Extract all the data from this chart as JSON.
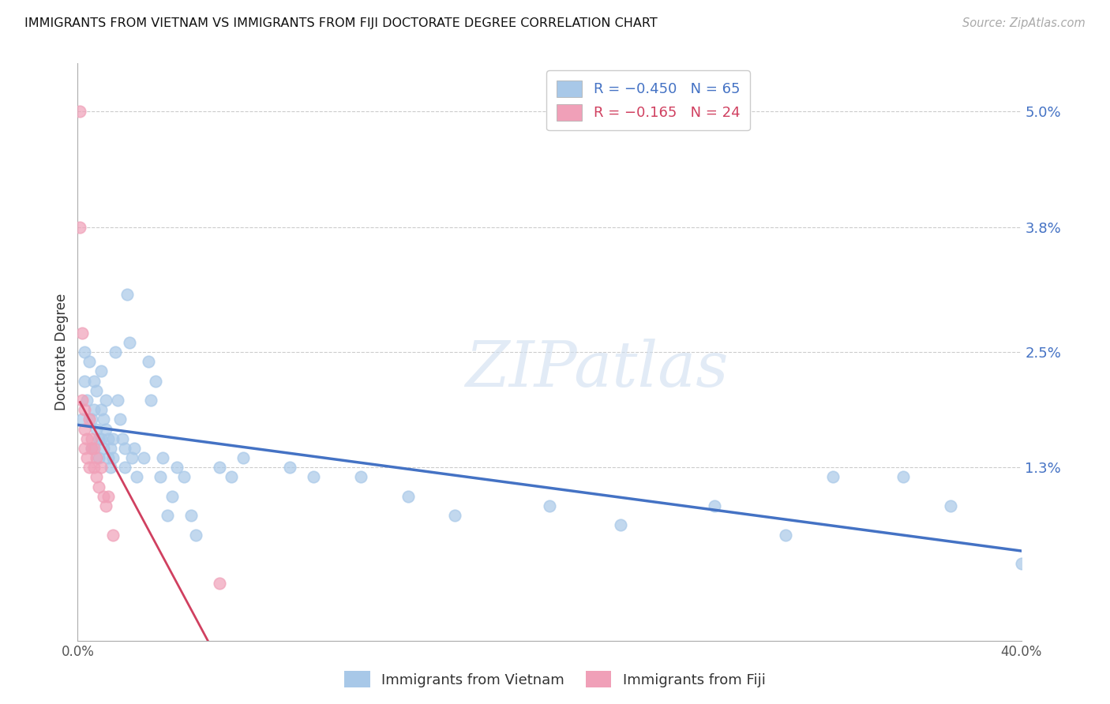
{
  "title": "IMMIGRANTS FROM VIETNAM VS IMMIGRANTS FROM FIJI DOCTORATE DEGREE CORRELATION CHART",
  "source": "Source: ZipAtlas.com",
  "ylabel": "Doctorate Degree",
  "ytick_labels": [
    "5.0%",
    "3.8%",
    "2.5%",
    "1.3%"
  ],
  "ytick_values": [
    0.05,
    0.038,
    0.025,
    0.013
  ],
  "xlim": [
    0.0,
    0.4
  ],
  "ylim": [
    -0.005,
    0.055
  ],
  "legend_r_vietnam": "R = −0.450",
  "legend_n_vietnam": "N = 65",
  "legend_r_fiji": "R = −0.165",
  "legend_n_fiji": "N = 24",
  "vietnam_color": "#a8c8e8",
  "fiji_color": "#f0a0b8",
  "trend_vietnam_color": "#4472c4",
  "trend_fiji_color": "#d04060",
  "vietnam_x": [
    0.002,
    0.003,
    0.003,
    0.004,
    0.005,
    0.006,
    0.006,
    0.007,
    0.007,
    0.008,
    0.008,
    0.009,
    0.009,
    0.01,
    0.01,
    0.01,
    0.011,
    0.011,
    0.012,
    0.012,
    0.013,
    0.013,
    0.014,
    0.014,
    0.015,
    0.015,
    0.016,
    0.017,
    0.018,
    0.019,
    0.02,
    0.02,
    0.021,
    0.022,
    0.023,
    0.024,
    0.025,
    0.028,
    0.03,
    0.031,
    0.033,
    0.035,
    0.036,
    0.038,
    0.04,
    0.042,
    0.045,
    0.048,
    0.05,
    0.06,
    0.065,
    0.07,
    0.09,
    0.1,
    0.12,
    0.14,
    0.16,
    0.2,
    0.23,
    0.27,
    0.3,
    0.32,
    0.35,
    0.37,
    0.4
  ],
  "vietnam_y": [
    0.018,
    0.022,
    0.025,
    0.02,
    0.024,
    0.015,
    0.018,
    0.022,
    0.019,
    0.017,
    0.021,
    0.016,
    0.014,
    0.023,
    0.019,
    0.016,
    0.018,
    0.015,
    0.02,
    0.017,
    0.014,
    0.016,
    0.015,
    0.013,
    0.016,
    0.014,
    0.025,
    0.02,
    0.018,
    0.016,
    0.015,
    0.013,
    0.031,
    0.026,
    0.014,
    0.015,
    0.012,
    0.014,
    0.024,
    0.02,
    0.022,
    0.012,
    0.014,
    0.008,
    0.01,
    0.013,
    0.012,
    0.008,
    0.006,
    0.013,
    0.012,
    0.014,
    0.013,
    0.012,
    0.012,
    0.01,
    0.008,
    0.009,
    0.007,
    0.009,
    0.006,
    0.012,
    0.012,
    0.009,
    0.003
  ],
  "fiji_x": [
    0.001,
    0.001,
    0.002,
    0.002,
    0.003,
    0.003,
    0.003,
    0.004,
    0.004,
    0.005,
    0.005,
    0.006,
    0.006,
    0.007,
    0.007,
    0.008,
    0.008,
    0.009,
    0.01,
    0.011,
    0.012,
    0.013,
    0.015,
    0.06
  ],
  "fiji_y": [
    0.05,
    0.038,
    0.027,
    0.02,
    0.019,
    0.017,
    0.015,
    0.016,
    0.014,
    0.018,
    0.013,
    0.016,
    0.015,
    0.015,
    0.013,
    0.014,
    0.012,
    0.011,
    0.013,
    0.01,
    0.009,
    0.01,
    0.006,
    0.001
  ]
}
